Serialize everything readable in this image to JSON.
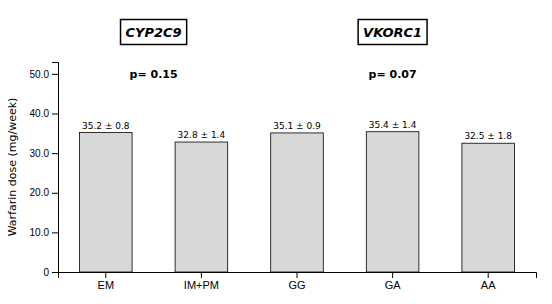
{
  "chart_data": {
    "type": "bar",
    "categories": [
      "EM",
      "IM+PM",
      "GG",
      "GA",
      "AA"
    ],
    "values": [
      35.2,
      32.8,
      35.1,
      35.4,
      32.5
    ],
    "value_labels": [
      "35.2 ± 0.8",
      "32.8 ± 1.4",
      "35.1 ± 0.9",
      "35.4 ± 1.4",
      "32.5 ± 1.8"
    ],
    "color": "#d8d8d8",
    "ylabel": "Warfarin dose (mg/week)",
    "ylim": [
      0,
      53.0
    ],
    "yticks": [
      0,
      {
        "value": 10.0,
        "label": "10.0"
      },
      {
        "value": 20.0,
        "label": "20.0"
      },
      {
        "value": 30.0,
        "label": "30.0"
      },
      {
        "value": 40.0,
        "label": "40.0"
      },
      {
        "value": 50.0,
        "label": "50.0"
      }
    ],
    "annotations": [
      "CYP2C9",
      "VKORC1",
      "p= 0.15",
      "p= 0.07"
    ],
    "grid": false
  }
}
